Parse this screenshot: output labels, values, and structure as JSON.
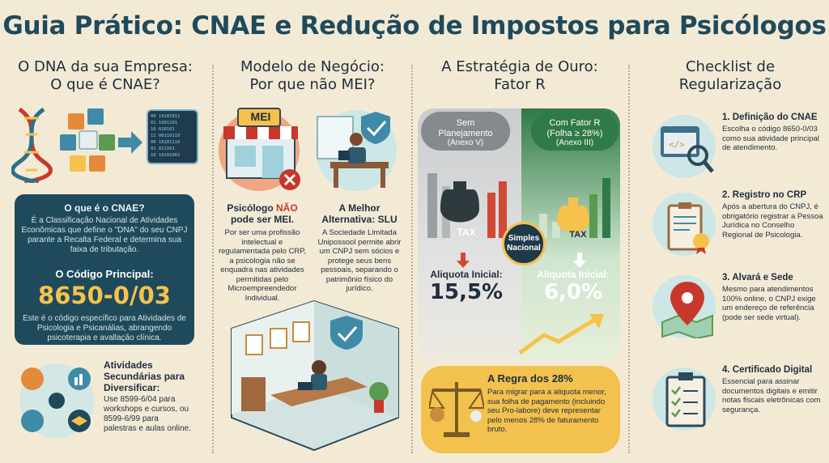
{
  "title": "Guia Prático: CNAE e Redução de Impostos para Psicólogos",
  "col1": {
    "title_line1": "O DNA da sua Empresa:",
    "title_line2": "O que é CNAE?",
    "box_question": "O que é o CNAE?",
    "box_text": "É a Classificação Nacional de Atividades Econômicas que define o \"DNA\" do seu CNPJ parante a Recalta Federal e determina sua faixa de tributação.",
    "code_label": "O Código Principal:",
    "code": "8650-0/03",
    "code_text": "Este é o código específico para Atividades de Psicologia e Psicanálias, abrangendo psicoterapia e avallação clínica.",
    "sec_title": "Atividades Secundárias para Diversificar:",
    "sec_text": "Use 8599-6/04 para workshops e cursos, ou 8599-6/99 para palestras e aulas online.",
    "binary": [
      "00 10101011",
      "01 1001101",
      "10 010101",
      "11 00110110",
      "00 10101110",
      "01 011101",
      "10 10101001"
    ]
  },
  "col2": {
    "title_line1": "Modelo de Negócio:",
    "title_line2": "Por que não MEI?",
    "mei_sign": "MEI",
    "left_title_a": "Psicólogo ",
    "left_title_b": "NÃO",
    "left_title_c": "pode ser MEI.",
    "left_text": "Por ser uma profissão intelectual e regulamentada pelo CRP, a psicologia não se enquadra nas atividades permitidas pelo Microempreendedor Individual.",
    "right_title": "A Melhor Alternativa: SLU",
    "right_text": "A Sociedade Limitada Unipossool permite abrir um CNPJ sem sócios e protege seus bens pessoais, separando o patrimônio físico do jurídico."
  },
  "col3": {
    "title_line1": "A Estratégia de Ouro:",
    "title_line2": "Fator R",
    "left_pill_1": "Sem",
    "left_pill_2": "Planejamento",
    "left_pill_3": "(Anexo V)",
    "right_pill_1": "Com Fator R",
    "right_pill_2": "(Folha ≥ 28%)",
    "right_pill_3": "(Anexo III)",
    "center": "Simples Nacional",
    "tax_label": "TAX",
    "left_aliq_label": "Aliquota Inicial:",
    "left_aliq": "15,5%",
    "right_aliq_label": "Aliquota Inicial:",
    "right_aliq": "6,0%",
    "regra_title": "A Regra dos 28%",
    "regra_text": "Para migrar para a aliquota menor, sua folha de pagamento (incluindo seu Pro-labore) deve representar pelo menos 28% de faturamento bruto."
  },
  "col4": {
    "title_line1": "Checklist de",
    "title_line2": "Regularização",
    "items": [
      {
        "h": "1. Definição do CNAE",
        "d": "Escolha o código 8650-0/03 como sua atividade principal de atendimento."
      },
      {
        "h": "2. Registro no CRP",
        "d": "Após a abertura do CNPJ, é obrigatório registrar a Pessoa Jurídica no Conselho Regional de Psicologia."
      },
      {
        "h": "3. Alvará e Sede",
        "d": "Mesmo para atendimentos 100% online, o CNPJ exige um endereço de referência (pode ser sede virtual)."
      },
      {
        "h": "4. Certificado Digital",
        "d": "Essencial para assinar documentos digitais e emitir notas fiscais eletrônicas com segurança."
      }
    ]
  },
  "colors": {
    "teal": "#1e4a5c",
    "gold": "#f6c24b",
    "green": "#2f7a46",
    "red": "#c8382a",
    "bg": "#f3ead6"
  }
}
